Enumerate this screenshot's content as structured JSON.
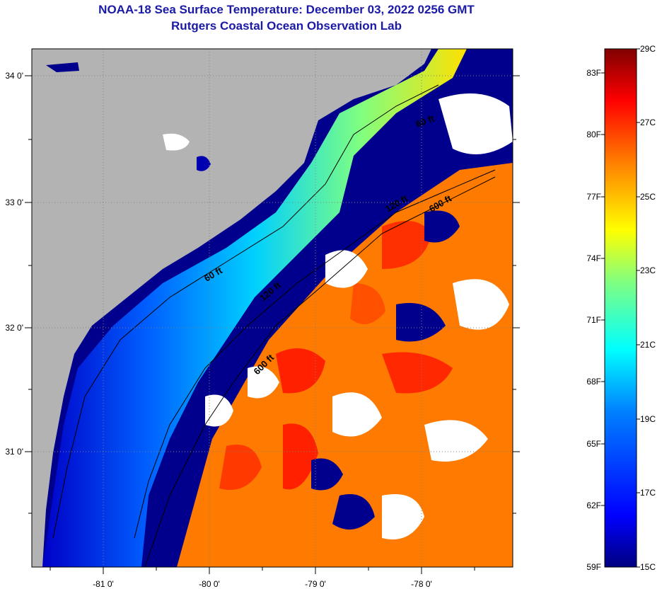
{
  "title": "NOAA-18 Sea Surface Temperature:  December 03, 2022 0256 GMT",
  "subtitle": "Rutgers Coastal Ocean Observation Lab",
  "map": {
    "lon_ticks": [
      "-81 0'",
      "-80 0'",
      "-79 0'",
      "-78 0'"
    ],
    "lat_ticks": [
      "34 0'",
      "33 0'",
      "32 0'",
      "31 0'"
    ],
    "contours": [
      "60 ft",
      "120 ft",
      "600 ft",
      "60 ft",
      "120 ft",
      "600 ft"
    ],
    "land_color": "#b3b3b3",
    "cloud_color": "#ffffff",
    "contour_color": "#000000"
  },
  "colorbar": {
    "fahrenheit": [
      "83F",
      "80F",
      "77F",
      "74F",
      "71F",
      "68F",
      "65F",
      "62F",
      "59F"
    ],
    "celsius": [
      "29C",
      "27C",
      "25C",
      "23C",
      "21C",
      "19C",
      "17C",
      "15C"
    ],
    "min_c": 15,
    "max_c": 29,
    "colors": [
      "#000080",
      "#0000ff",
      "#0080ff",
      "#00ffff",
      "#80ff80",
      "#ffff00",
      "#ff8000",
      "#ff0000",
      "#800000"
    ]
  }
}
